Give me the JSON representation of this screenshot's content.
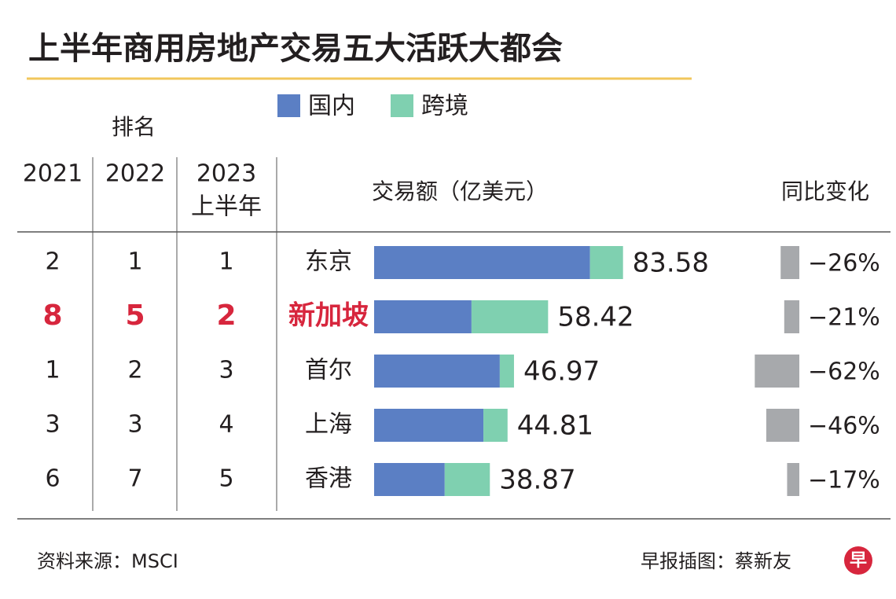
{
  "chart_data": {
    "type": "bar",
    "title": "上半年商用房地产交易五大活跃大都会",
    "rank_header": "排名",
    "rank_columns": [
      [
        "2021"
      ],
      [
        "2022"
      ],
      [
        "2023",
        "上半年"
      ]
    ],
    "value_header": "交易额（亿美元）",
    "change_header": "同比变化",
    "categories": [
      "东京",
      "新加坡",
      "首尔",
      "上海",
      "香港"
    ],
    "highlight_index": 1,
    "highlight_color": "#d7263d",
    "ranks": [
      [
        2,
        1,
        1
      ],
      [
        8,
        5,
        2
      ],
      [
        1,
        2,
        3
      ],
      [
        3,
        3,
        4
      ],
      [
        6,
        7,
        5
      ]
    ],
    "series": [
      {
        "name": "国内",
        "color": "#5b7fc4",
        "values": [
          72.5,
          32.7,
          42.2,
          36.7,
          23.7
        ]
      },
      {
        "name": "跨境",
        "color": "#7fd0b0",
        "values": [
          11.08,
          25.72,
          4.77,
          8.11,
          15.17
        ]
      }
    ],
    "totals": [
      83.58,
      58.42,
      46.97,
      44.81,
      38.87
    ],
    "xlim": [
      0,
      90
    ],
    "change": {
      "values": [
        -26,
        -21,
        -62,
        -46,
        -17
      ],
      "value_labels": [
        "−26%",
        "−21%",
        "−62%",
        "−46%",
        "−17%"
      ],
      "color": "#a7a9ac",
      "xlim": [
        -70,
        0
      ]
    },
    "source": "资料来源：MSCI",
    "credit": "早报插图：蔡新友",
    "logo": "早"
  }
}
